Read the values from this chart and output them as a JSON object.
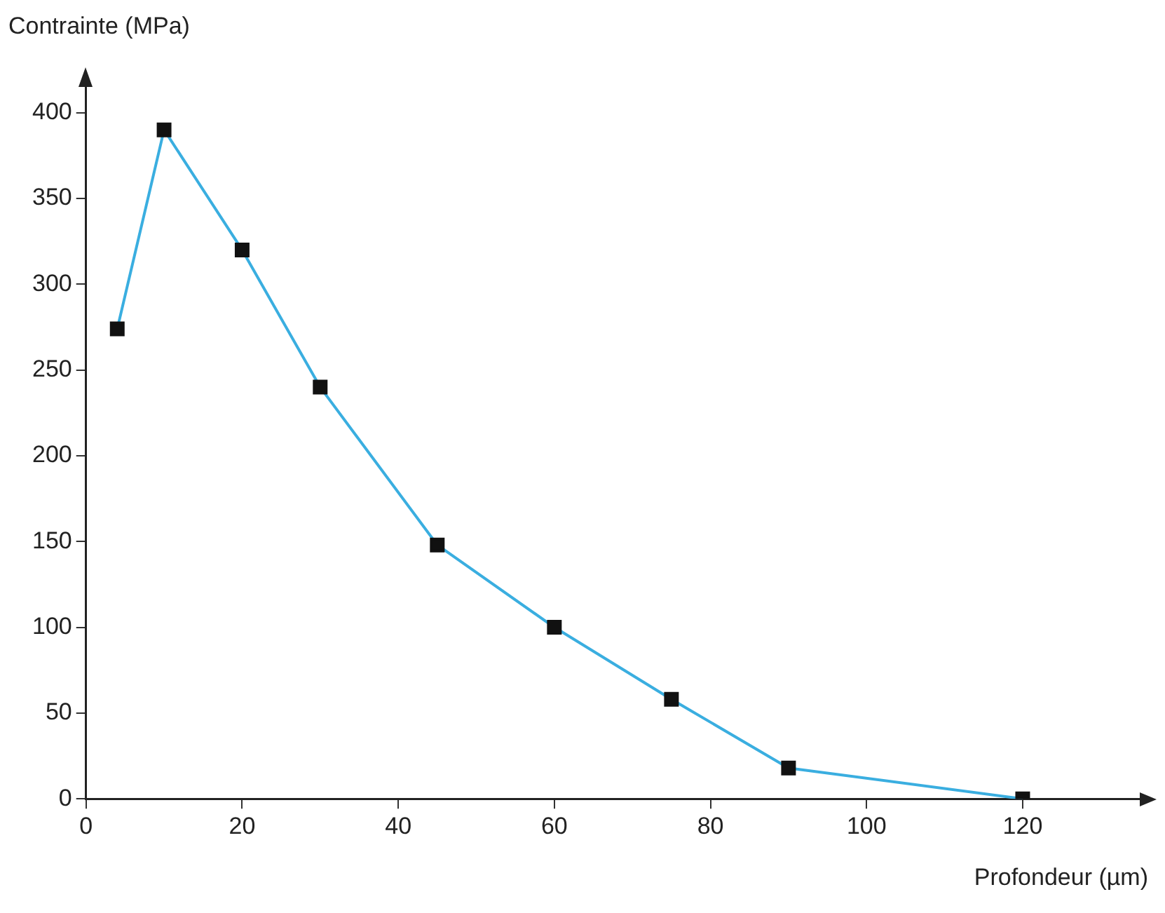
{
  "chart_data": {
    "type": "line",
    "xlabel": "Profondeur (µm)",
    "ylabel": "Contrainte (MPa)",
    "x": [
      4,
      10,
      20,
      30,
      45,
      60,
      75,
      90,
      120
    ],
    "series": [
      {
        "color": "#3aaee0",
        "values": [
          274,
          390,
          320,
          240,
          148,
          100,
          58,
          18,
          0
        ]
      }
    ],
    "xlim": [
      0,
      135
    ],
    "ylim": [
      0,
      415
    ],
    "xticks": [
      0,
      20,
      40,
      60,
      80,
      100,
      120
    ],
    "yticks": [
      0,
      50,
      100,
      150,
      200,
      250,
      300,
      350,
      400
    ],
    "grid": false,
    "legend": false,
    "marker": "square",
    "line_style": "solid"
  }
}
